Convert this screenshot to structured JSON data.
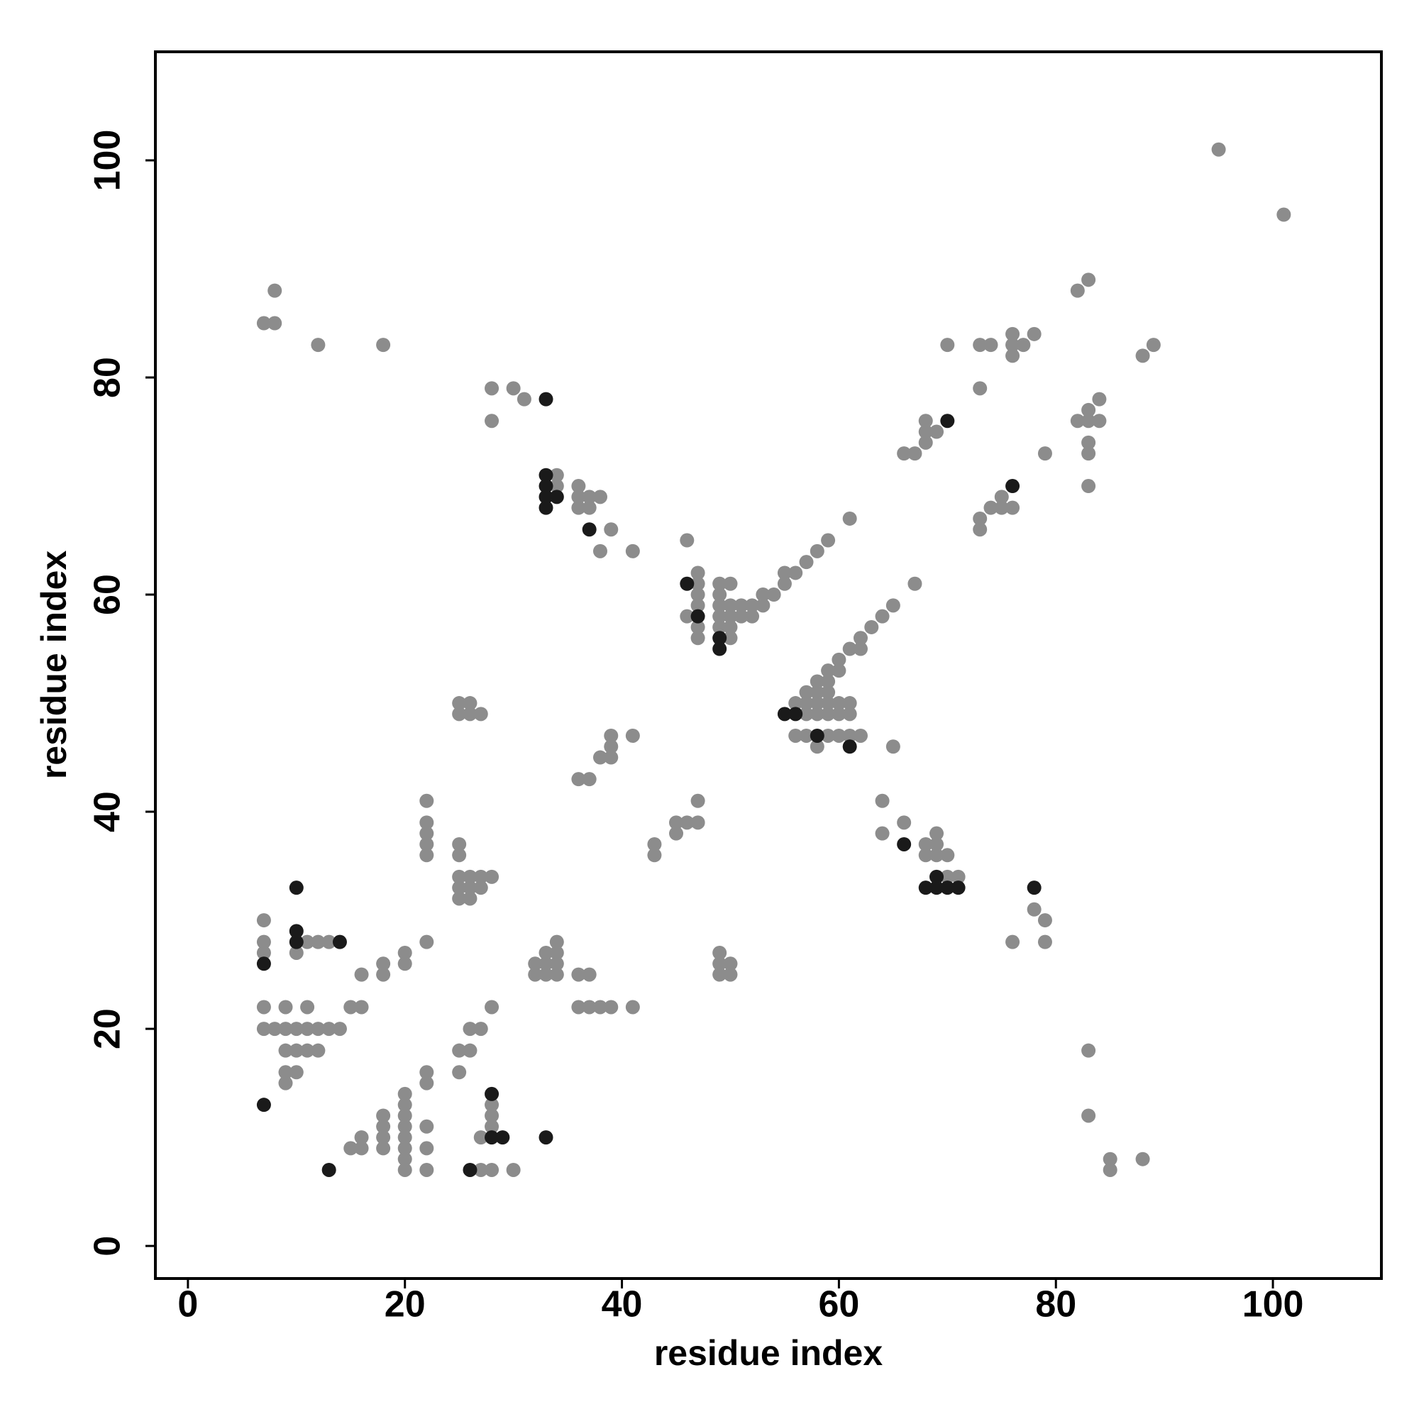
{
  "chart_data": {
    "type": "scatter",
    "xlabel": "residue index",
    "ylabel": "residue index",
    "xlim": [
      -3,
      110
    ],
    "ylim": [
      -3,
      110
    ],
    "xticks": [
      0,
      20,
      40,
      60,
      80,
      100
    ],
    "yticks": [
      0,
      20,
      40,
      60,
      80,
      100
    ],
    "series": [
      {
        "color": "#8c8c8c",
        "x": [
          95,
          101,
          7,
          8,
          8,
          12,
          18,
          82,
          83,
          88,
          89,
          70,
          73,
          74,
          76,
          76,
          76,
          77,
          78,
          73,
          28,
          30,
          31,
          28,
          68,
          68,
          69,
          68,
          66,
          67,
          82,
          83,
          83,
          84,
          84,
          83,
          83,
          79,
          83,
          73,
          73,
          74,
          75,
          75,
          76,
          34,
          34,
          36,
          36,
          36,
          37,
          38,
          37,
          39,
          38,
          41,
          46,
          47,
          47,
          47,
          47,
          46,
          47,
          47,
          49,
          50,
          49,
          49,
          50,
          49,
          50,
          51,
          50,
          51,
          52,
          52,
          49,
          50,
          53,
          53,
          54,
          55,
          55,
          56,
          57,
          58,
          59,
          61,
          67,
          65,
          64,
          63,
          62,
          62,
          61,
          60,
          60,
          59,
          59,
          58,
          58,
          57,
          57,
          56,
          58,
          59,
          59,
          60,
          61,
          59,
          60,
          61,
          57,
          58,
          56,
          57,
          58,
          59,
          60,
          61,
          62,
          65,
          25,
          26,
          25,
          26,
          27,
          39,
          41,
          39,
          38,
          39,
          36,
          37,
          47,
          46,
          47,
          45,
          45,
          43,
          43,
          64,
          64,
          66,
          68,
          69,
          68,
          69,
          69,
          70,
          70,
          71,
          78,
          79,
          76,
          79,
          22,
          22,
          22,
          22,
          22,
          25,
          25,
          25,
          26,
          27,
          28,
          25,
          26,
          27,
          25,
          26,
          7,
          7,
          7,
          10,
          11,
          12,
          13,
          22,
          16,
          18,
          18,
          20,
          20,
          32,
          33,
          33,
          34,
          34,
          34,
          32,
          33,
          34,
          36,
          37,
          49,
          49,
          50,
          49,
          50,
          36,
          37,
          38,
          39,
          41,
          28,
          7,
          9,
          11,
          15,
          16,
          7,
          8,
          9,
          10,
          11,
          12,
          13,
          14,
          9,
          10,
          11,
          12,
          9,
          10,
          9,
          25,
          26,
          26,
          27,
          22,
          22,
          25,
          83,
          83,
          85,
          85,
          88,
          20,
          20,
          20,
          20,
          20,
          20,
          20,
          20,
          18,
          18,
          18,
          18,
          22,
          22,
          22,
          16,
          16,
          15,
          28,
          28,
          28,
          27,
          28,
          27,
          30
        ],
        "y": [
          101,
          95,
          85,
          85,
          88,
          83,
          83,
          88,
          89,
          82,
          83,
          83,
          83,
          83,
          84,
          83,
          82,
          83,
          84,
          79,
          79,
          79,
          78,
          76,
          76,
          75,
          75,
          74,
          73,
          73,
          76,
          77,
          76,
          76,
          78,
          74,
          73,
          73,
          70,
          67,
          66,
          68,
          69,
          68,
          68,
          71,
          70,
          70,
          69,
          68,
          69,
          69,
          68,
          66,
          64,
          64,
          65,
          62,
          61,
          60,
          59,
          58,
          57,
          56,
          61,
          61,
          60,
          59,
          59,
          58,
          58,
          59,
          57,
          58,
          59,
          58,
          57,
          56,
          59,
          60,
          60,
          61,
          62,
          62,
          63,
          64,
          65,
          67,
          61,
          59,
          58,
          57,
          56,
          55,
          55,
          54,
          53,
          53,
          52,
          52,
          51,
          51,
          50,
          50,
          50,
          50,
          51,
          50,
          50,
          49,
          49,
          49,
          49,
          49,
          47,
          47,
          46,
          47,
          47,
          47,
          47,
          46,
          50,
          50,
          49,
          49,
          49,
          47,
          47,
          46,
          45,
          45,
          43,
          43,
          41,
          39,
          39,
          39,
          38,
          37,
          36,
          41,
          38,
          39,
          37,
          37,
          36,
          38,
          36,
          36,
          34,
          34,
          31,
          30,
          28,
          28,
          41,
          39,
          38,
          37,
          36,
          37,
          36,
          34,
          34,
          34,
          34,
          33,
          33,
          33,
          32,
          32,
          30,
          28,
          27,
          27,
          28,
          28,
          28,
          28,
          25,
          26,
          25,
          27,
          26,
          26,
          27,
          26,
          28,
          27,
          26,
          25,
          25,
          25,
          25,
          25,
          27,
          26,
          26,
          25,
          25,
          22,
          22,
          22,
          22,
          22,
          22,
          22,
          22,
          22,
          22,
          22,
          20,
          20,
          20,
          20,
          20,
          20,
          20,
          20,
          18,
          18,
          18,
          18,
          16,
          16,
          15,
          18,
          18,
          20,
          20,
          16,
          15,
          16,
          18,
          12,
          8,
          7,
          8,
          14,
          13,
          12,
          11,
          10,
          9,
          8,
          7,
          12,
          11,
          10,
          9,
          11,
          9,
          7,
          10,
          9,
          9,
          13,
          12,
          11,
          10,
          7,
          7,
          7
        ]
      },
      {
        "color": "#1a1a1a",
        "x": [
          33,
          70,
          76,
          33,
          33,
          33,
          33,
          34,
          37,
          46,
          47,
          49,
          49,
          55,
          56,
          58,
          61,
          66,
          68,
          69,
          69,
          70,
          71,
          78,
          10,
          10,
          10,
          14,
          7,
          7,
          28,
          28,
          29,
          33,
          26,
          13
        ],
        "y": [
          78,
          76,
          70,
          71,
          70,
          69,
          68,
          69,
          66,
          61,
          58,
          56,
          55,
          49,
          49,
          47,
          46,
          37,
          33,
          34,
          33,
          33,
          33,
          33,
          33,
          29,
          28,
          28,
          26,
          13,
          14,
          10,
          10,
          10,
          7,
          7
        ]
      }
    ]
  }
}
